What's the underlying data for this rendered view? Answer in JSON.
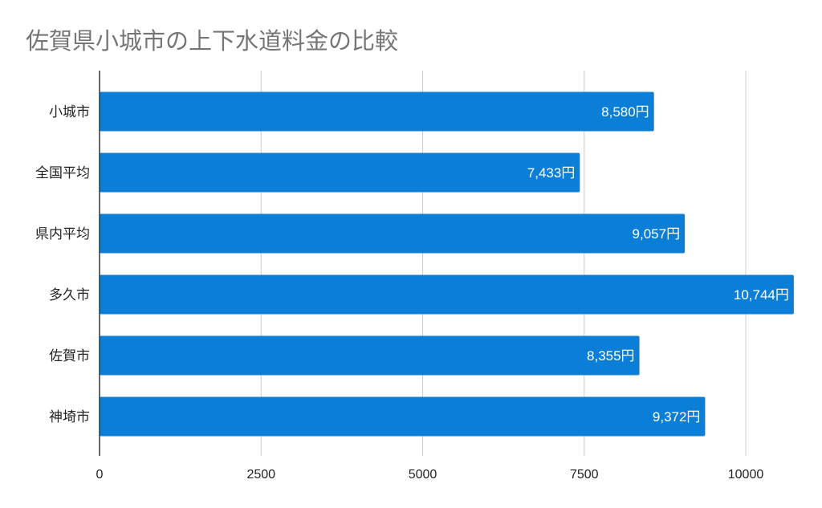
{
  "chart_data": {
    "type": "bar",
    "orientation": "horizontal",
    "title": "佐賀県小城市の上下水道料金の比較",
    "categories": [
      "小城市",
      "全国平均",
      "県内平均",
      "多久市",
      "佐賀市",
      "神埼市"
    ],
    "values": [
      8580,
      7433,
      9057,
      10744,
      8355,
      9372
    ],
    "data_labels": [
      "8,580円",
      "7,433円",
      "9,057円",
      "10,744円",
      "8,355円",
      "9,372円"
    ],
    "xlim": [
      0,
      10700
    ],
    "x_ticks": [
      "0",
      "2500",
      "5000",
      "7500",
      "10000"
    ],
    "x_tick_values": [
      0,
      2500,
      5000,
      7500,
      10000
    ],
    "grid": true,
    "legend": "none",
    "xlabel": "",
    "ylabel": "",
    "bar_color": "#0b7fd8",
    "title_color": "#757575",
    "grid_color": "#cccccc"
  }
}
